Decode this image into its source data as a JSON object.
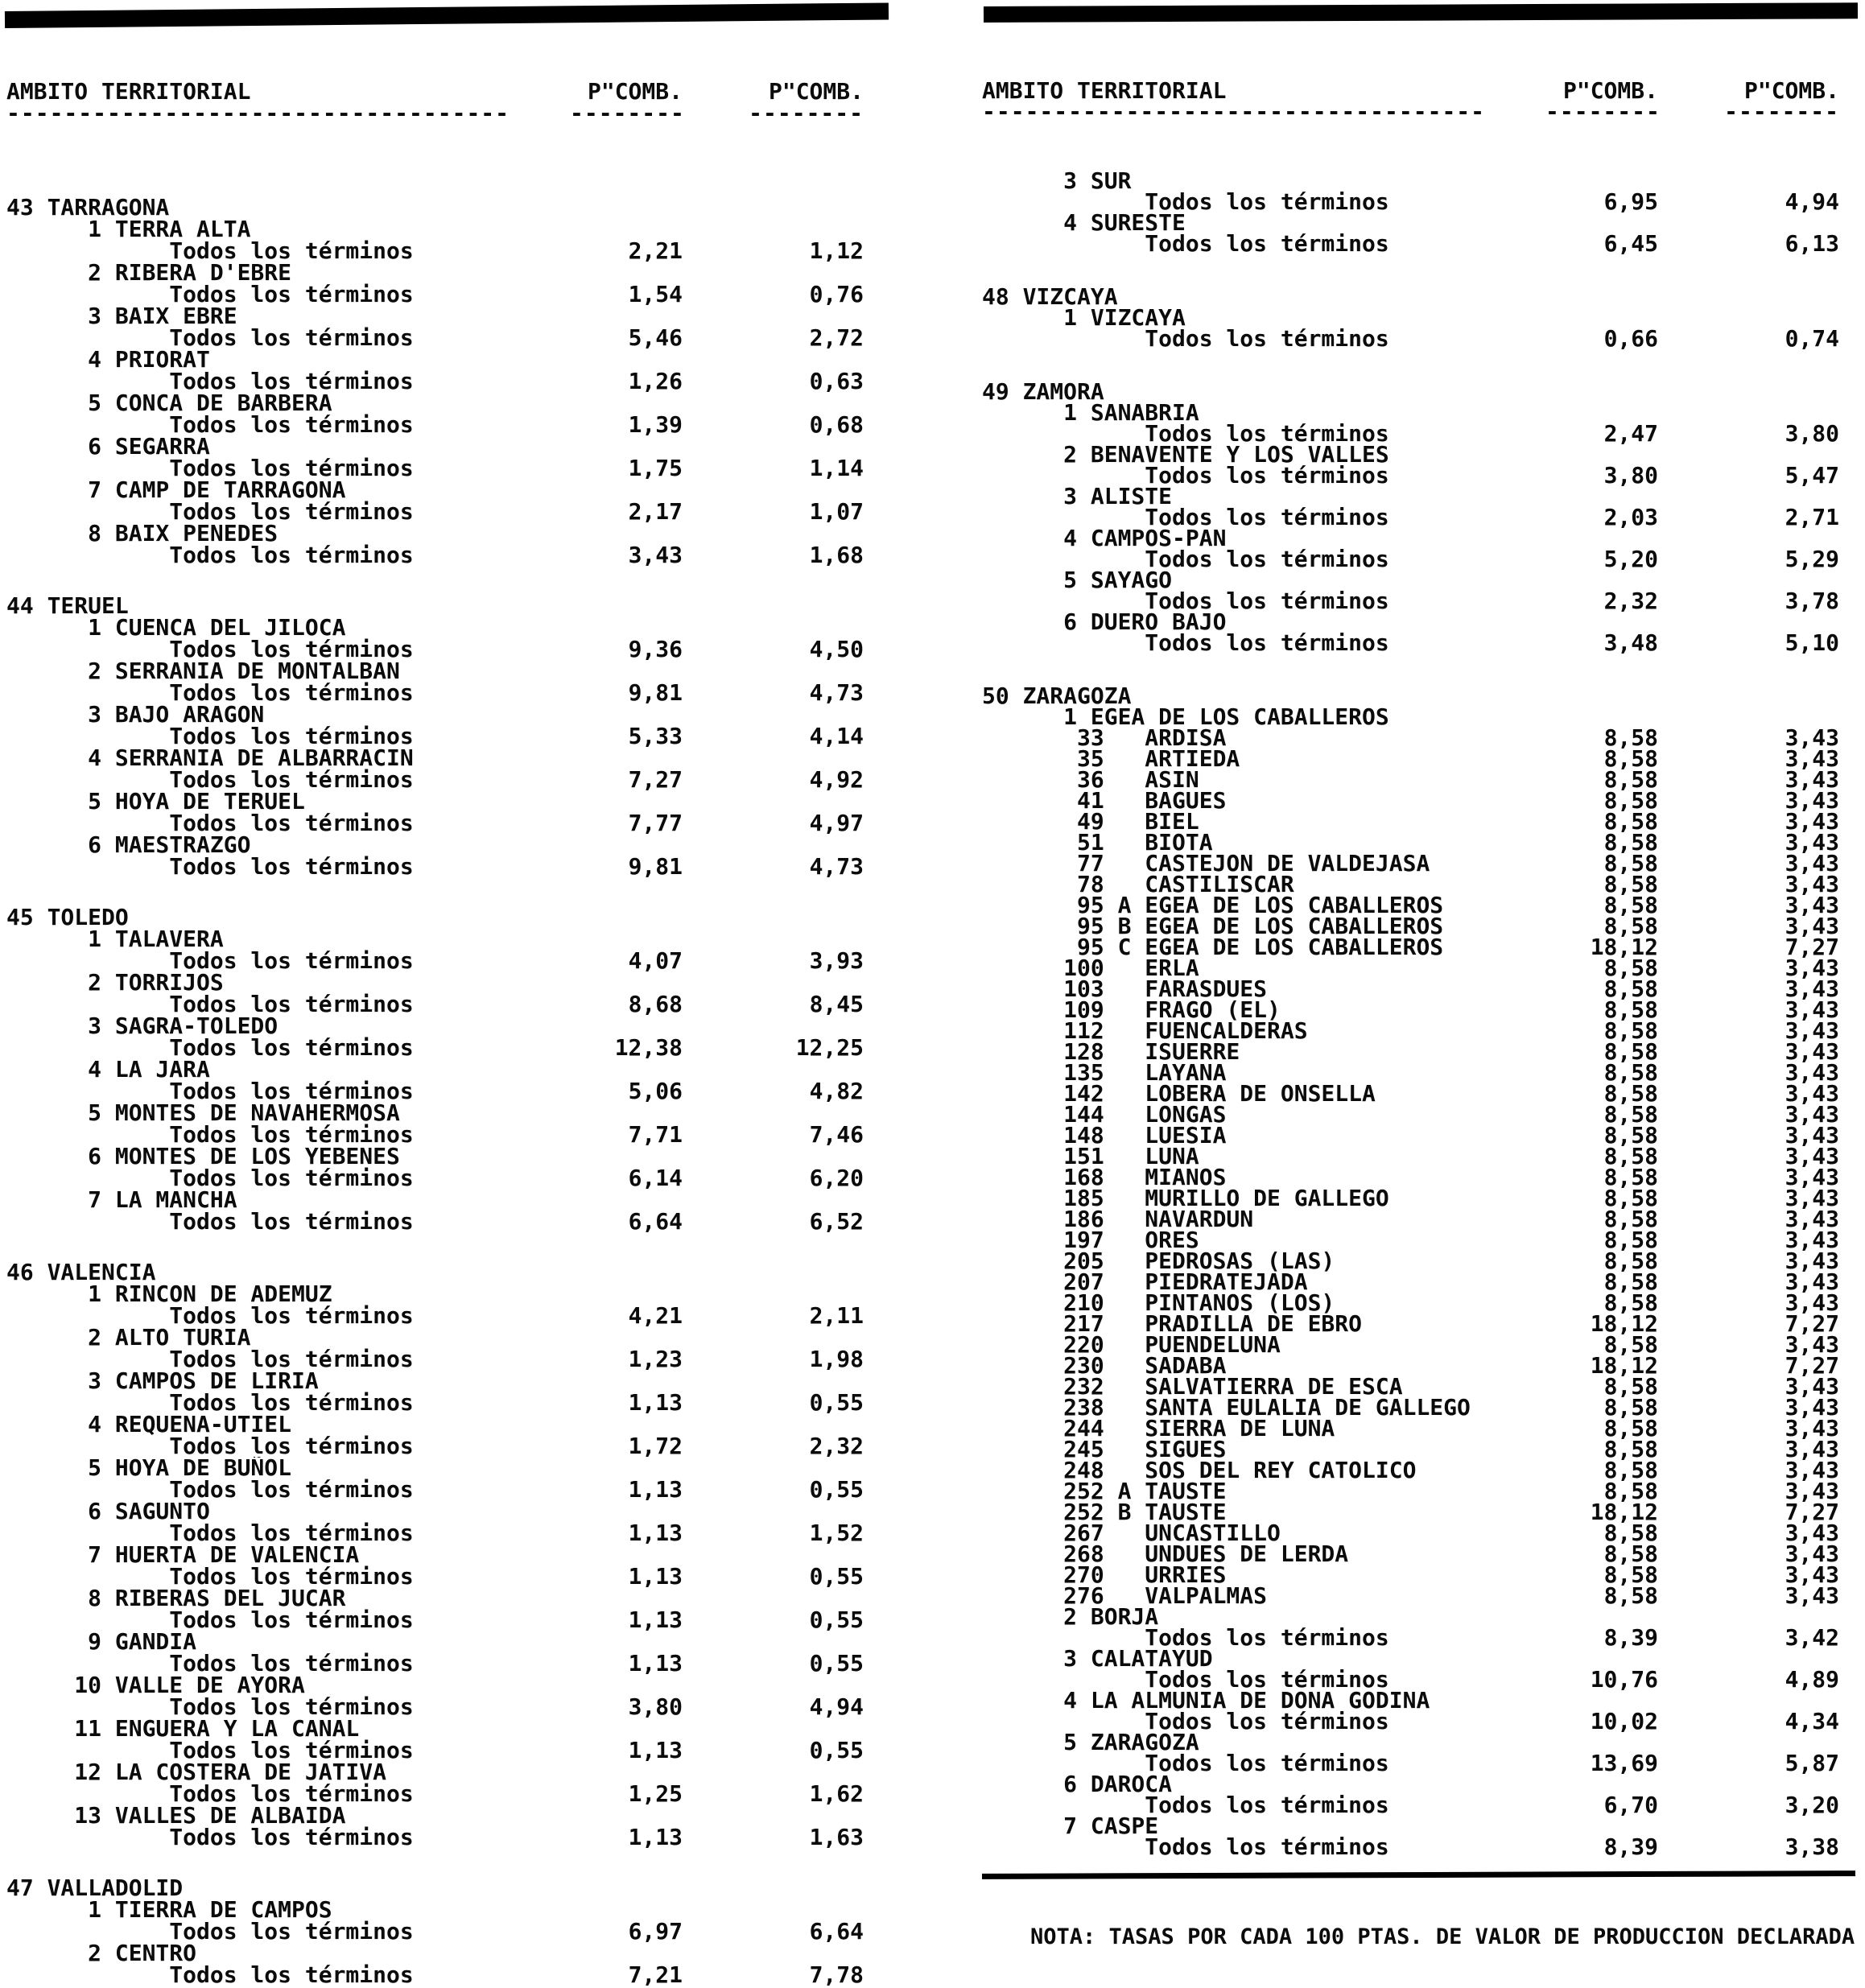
{
  "page": {
    "note": "NOTA: TASAS POR CADA 100 PTAS. DE VALOR DE PRODUCCION DECLARADA"
  },
  "header": {
    "territory_label": "AMBITO TERRITORIAL",
    "col1_label": "P\"COMB.",
    "col2_label": "P\"COMB.",
    "territory_dashes": "-----------------------------------",
    "value_dashes": "--------"
  },
  "todos_label": "Todos los términos",
  "columns": {
    "left": {
      "blocks": [
        {
          "num": "43",
          "name": "TARRAGONA",
          "items": [
            {
              "num": "1",
              "name": "TERRA ALTA",
              "v1": "2,21",
              "v2": "1,12"
            },
            {
              "num": "2",
              "name": "RIBERA D'EBRE",
              "v1": "1,54",
              "v2": "0,76"
            },
            {
              "num": "3",
              "name": "BAIX EBRE",
              "v1": "5,46",
              "v2": "2,72"
            },
            {
              "num": "4",
              "name": "PRIORAT",
              "v1": "1,26",
              "v2": "0,63"
            },
            {
              "num": "5",
              "name": "CONCA DE BARBERA",
              "v1": "1,39",
              "v2": "0,68"
            },
            {
              "num": "6",
              "name": "SEGARRA",
              "v1": "1,75",
              "v2": "1,14"
            },
            {
              "num": "7",
              "name": "CAMP DE TARRAGONA",
              "v1": "2,17",
              "v2": "1,07"
            },
            {
              "num": "8",
              "name": "BAIX PENEDES",
              "v1": "3,43",
              "v2": "1,68"
            }
          ]
        },
        {
          "num": "44",
          "name": "TERUEL",
          "items": [
            {
              "num": "1",
              "name": "CUENCA DEL JILOCA",
              "v1": "9,36",
              "v2": "4,50"
            },
            {
              "num": "2",
              "name": "SERRANIA DE MONTALBAN",
              "v1": "9,81",
              "v2": "4,73"
            },
            {
              "num": "3",
              "name": "BAJO ARAGON",
              "v1": "5,33",
              "v2": "4,14"
            },
            {
              "num": "4",
              "name": "SERRANIA DE ALBARRACIN",
              "v1": "7,27",
              "v2": "4,92"
            },
            {
              "num": "5",
              "name": "HOYA DE TERUEL",
              "v1": "7,77",
              "v2": "4,97"
            },
            {
              "num": "6",
              "name": "MAESTRAZGO",
              "v1": "9,81",
              "v2": "4,73"
            }
          ]
        },
        {
          "num": "45",
          "name": "TOLEDO",
          "items": [
            {
              "num": "1",
              "name": "TALAVERA",
              "v1": "4,07",
              "v2": "3,93"
            },
            {
              "num": "2",
              "name": "TORRIJOS",
              "v1": "8,68",
              "v2": "8,45"
            },
            {
              "num": "3",
              "name": "SAGRA-TOLEDO",
              "v1": "12,38",
              "v2": "12,25"
            },
            {
              "num": "4",
              "name": "LA JARA",
              "v1": "5,06",
              "v2": "4,82"
            },
            {
              "num": "5",
              "name": "MONTES DE NAVAHERMOSA",
              "v1": "7,71",
              "v2": "7,46"
            },
            {
              "num": "6",
              "name": "MONTES DE LOS YEBENES",
              "v1": "6,14",
              "v2": "6,20"
            },
            {
              "num": "7",
              "name": "LA MANCHA",
              "v1": "6,64",
              "v2": "6,52"
            }
          ]
        },
        {
          "num": "46",
          "name": "VALENCIA",
          "items": [
            {
              "num": "1",
              "name": "RINCON DE ADEMUZ",
              "v1": "4,21",
              "v2": "2,11"
            },
            {
              "num": "2",
              "name": "ALTO TURIA",
              "v1": "1,23",
              "v2": "1,98"
            },
            {
              "num": "3",
              "name": "CAMPOS DE LIRIA",
              "v1": "1,13",
              "v2": "0,55"
            },
            {
              "num": "4",
              "name": "REQUENA-UTIEL",
              "v1": "1,72",
              "v2": "2,32"
            },
            {
              "num": "5",
              "name": "HOYA DE BUÑOL",
              "v1": "1,13",
              "v2": "0,55"
            },
            {
              "num": "6",
              "name": "SAGUNTO",
              "v1": "1,13",
              "v2": "1,52"
            },
            {
              "num": "7",
              "name": "HUERTA DE VALENCIA",
              "v1": "1,13",
              "v2": "0,55"
            },
            {
              "num": "8",
              "name": "RIBERAS DEL JUCAR",
              "v1": "1,13",
              "v2": "0,55"
            },
            {
              "num": "9",
              "name": "GANDIA",
              "v1": "1,13",
              "v2": "0,55"
            },
            {
              "num": "10",
              "name": "VALLE DE AYORA",
              "v1": "3,80",
              "v2": "4,94"
            },
            {
              "num": "11",
              "name": "ENGUERA Y LA CANAL",
              "v1": "1,13",
              "v2": "0,55"
            },
            {
              "num": "12",
              "name": "LA COSTERA DE JATIVA",
              "v1": "1,25",
              "v2": "1,62"
            },
            {
              "num": "13",
              "name": "VALLES DE ALBAIDA",
              "v1": "1,13",
              "v2": "1,63"
            }
          ]
        },
        {
          "num": "47",
          "name": "VALLADOLID",
          "items": [
            {
              "num": "1",
              "name": "TIERRA DE CAMPOS",
              "v1": "6,97",
              "v2": "6,64"
            },
            {
              "num": "2",
              "name": "CENTRO",
              "v1": "7,21",
              "v2": "7,78"
            }
          ]
        }
      ]
    },
    "right": {
      "blocks": [
        {
          "num": "",
          "name": "",
          "items": [
            {
              "num": "3",
              "name": "SUR",
              "v1": "6,95",
              "v2": "4,94"
            },
            {
              "num": "4",
              "name": "SURESTE",
              "v1": "6,45",
              "v2": "6,13"
            }
          ]
        },
        {
          "num": "48",
          "name": "VIZCAYA",
          "items": [
            {
              "num": "1",
              "name": "VIZCAYA",
              "v1": "0,66",
              "v2": "0,74"
            }
          ]
        },
        {
          "num": "49",
          "name": "ZAMORA",
          "items": [
            {
              "num": "1",
              "name": "SANABRIA",
              "v1": "2,47",
              "v2": "3,80"
            },
            {
              "num": "2",
              "name": "BENAVENTE Y LOS VALLES",
              "v1": "3,80",
              "v2": "5,47"
            },
            {
              "num": "3",
              "name": "ALISTE",
              "v1": "2,03",
              "v2": "2,71"
            },
            {
              "num": "4",
              "name": "CAMPOS-PAN",
              "v1": "5,20",
              "v2": "5,29"
            },
            {
              "num": "5",
              "name": "SAYAGO",
              "v1": "2,32",
              "v2": "3,78"
            },
            {
              "num": "6",
              "name": "DUERO BAJO",
              "v1": "3,48",
              "v2": "5,10"
            }
          ]
        },
        {
          "num": "50",
          "name": "ZARAGOZA",
          "items": [
            {
              "num": "1",
              "name": "EGEA DE LOS CABALLEROS",
              "munis": [
                {
                  "num": "33",
                  "suf": "",
                  "name": "ARDISA",
                  "v1": "8,58",
                  "v2": "3,43"
                },
                {
                  "num": "35",
                  "suf": "",
                  "name": "ARTIEDA",
                  "v1": "8,58",
                  "v2": "3,43"
                },
                {
                  "num": "36",
                  "suf": "",
                  "name": "ASIN",
                  "v1": "8,58",
                  "v2": "3,43"
                },
                {
                  "num": "41",
                  "suf": "",
                  "name": "BAGUES",
                  "v1": "8,58",
                  "v2": "3,43"
                },
                {
                  "num": "49",
                  "suf": "",
                  "name": "BIEL",
                  "v1": "8,58",
                  "v2": "3,43"
                },
                {
                  "num": "51",
                  "suf": "",
                  "name": "BIOTA",
                  "v1": "8,58",
                  "v2": "3,43"
                },
                {
                  "num": "77",
                  "suf": "",
                  "name": "CASTEJON DE VALDEJASA",
                  "v1": "8,58",
                  "v2": "3,43"
                },
                {
                  "num": "78",
                  "suf": "",
                  "name": "CASTILISCAR",
                  "v1": "8,58",
                  "v2": "3,43"
                },
                {
                  "num": "95",
                  "suf": "A",
                  "name": "EGEA DE LOS CABALLEROS",
                  "v1": "8,58",
                  "v2": "3,43"
                },
                {
                  "num": "95",
                  "suf": "B",
                  "name": "EGEA DE LOS CABALLEROS",
                  "v1": "8,58",
                  "v2": "3,43"
                },
                {
                  "num": "95",
                  "suf": "C",
                  "name": "EGEA DE LOS CABALLEROS",
                  "v1": "18,12",
                  "v2": "7,27"
                },
                {
                  "num": "100",
                  "suf": "",
                  "name": "ERLA",
                  "v1": "8,58",
                  "v2": "3,43"
                },
                {
                  "num": "103",
                  "suf": "",
                  "name": "FARASDUES",
                  "v1": "8,58",
                  "v2": "3,43"
                },
                {
                  "num": "109",
                  "suf": "",
                  "name": "FRAGO (EL)",
                  "v1": "8,58",
                  "v2": "3,43"
                },
                {
                  "num": "112",
                  "suf": "",
                  "name": "FUENCALDERAS",
                  "v1": "8,58",
                  "v2": "3,43"
                },
                {
                  "num": "128",
                  "suf": "",
                  "name": "ISUERRE",
                  "v1": "8,58",
                  "v2": "3,43"
                },
                {
                  "num": "135",
                  "suf": "",
                  "name": "LAYANA",
                  "v1": "8,58",
                  "v2": "3,43"
                },
                {
                  "num": "142",
                  "suf": "",
                  "name": "LOBERA DE ONSELLA",
                  "v1": "8,58",
                  "v2": "3,43"
                },
                {
                  "num": "144",
                  "suf": "",
                  "name": "LONGAS",
                  "v1": "8,58",
                  "v2": "3,43"
                },
                {
                  "num": "148",
                  "suf": "",
                  "name": "LUESIA",
                  "v1": "8,58",
                  "v2": "3,43"
                },
                {
                  "num": "151",
                  "suf": "",
                  "name": "LUNA",
                  "v1": "8,58",
                  "v2": "3,43"
                },
                {
                  "num": "168",
                  "suf": "",
                  "name": "MIANOS",
                  "v1": "8,58",
                  "v2": "3,43"
                },
                {
                  "num": "185",
                  "suf": "",
                  "name": "MURILLO DE GALLEGO",
                  "v1": "8,58",
                  "v2": "3,43"
                },
                {
                  "num": "186",
                  "suf": "",
                  "name": "NAVARDUN",
                  "v1": "8,58",
                  "v2": "3,43"
                },
                {
                  "num": "197",
                  "suf": "",
                  "name": "ORES",
                  "v1": "8,58",
                  "v2": "3,43"
                },
                {
                  "num": "205",
                  "suf": "",
                  "name": "PEDROSAS (LAS)",
                  "v1": "8,58",
                  "v2": "3,43"
                },
                {
                  "num": "207",
                  "suf": "",
                  "name": "PIEDRATEJADA",
                  "v1": "8,58",
                  "v2": "3,43"
                },
                {
                  "num": "210",
                  "suf": "",
                  "name": "PINTANOS (LOS)",
                  "v1": "8,58",
                  "v2": "3,43"
                },
                {
                  "num": "217",
                  "suf": "",
                  "name": "PRADILLA DE EBRO",
                  "v1": "18,12",
                  "v2": "7,27"
                },
                {
                  "num": "220",
                  "suf": "",
                  "name": "PUENDELUNA",
                  "v1": "8,58",
                  "v2": "3,43"
                },
                {
                  "num": "230",
                  "suf": "",
                  "name": "SADABA",
                  "v1": "18,12",
                  "v2": "7,27"
                },
                {
                  "num": "232",
                  "suf": "",
                  "name": "SALVATIERRA DE ESCA",
                  "v1": "8,58",
                  "v2": "3,43"
                },
                {
                  "num": "238",
                  "suf": "",
                  "name": "SANTA EULALIA DE GALLEGO",
                  "v1": "8,58",
                  "v2": "3,43"
                },
                {
                  "num": "244",
                  "suf": "",
                  "name": "SIERRA DE LUNA",
                  "v1": "8,58",
                  "v2": "3,43"
                },
                {
                  "num": "245",
                  "suf": "",
                  "name": "SIGUES",
                  "v1": "8,58",
                  "v2": "3,43"
                },
                {
                  "num": "248",
                  "suf": "",
                  "name": "SOS DEL REY CATOLICO",
                  "v1": "8,58",
                  "v2": "3,43"
                },
                {
                  "num": "252",
                  "suf": "A",
                  "name": "TAUSTE",
                  "v1": "8,58",
                  "v2": "3,43"
                },
                {
                  "num": "252",
                  "suf": "B",
                  "name": "TAUSTE",
                  "v1": "18,12",
                  "v2": "7,27"
                },
                {
                  "num": "267",
                  "suf": "",
                  "name": "UNCASTILLO",
                  "v1": "8,58",
                  "v2": "3,43"
                },
                {
                  "num": "268",
                  "suf": "",
                  "name": "UNDUES DE LERDA",
                  "v1": "8,58",
                  "v2": "3,43"
                },
                {
                  "num": "270",
                  "suf": "",
                  "name": "URRIES",
                  "v1": "8,58",
                  "v2": "3,43"
                },
                {
                  "num": "276",
                  "suf": "",
                  "name": "VALPALMAS",
                  "v1": "8,58",
                  "v2": "3,43"
                }
              ]
            },
            {
              "num": "2",
              "name": "BORJA",
              "v1": "8,39",
              "v2": "3,42"
            },
            {
              "num": "3",
              "name": "CALATAYUD",
              "v1": "10,76",
              "v2": "4,89"
            },
            {
              "num": "4",
              "name": "LA ALMUNIA DE DOÑA GODINA",
              "v1": "10,02",
              "v2": "4,34"
            },
            {
              "num": "5",
              "name": "ZARAGOZA",
              "v1": "13,69",
              "v2": "5,87"
            },
            {
              "num": "6",
              "name": "DAROCA",
              "v1": "6,70",
              "v2": "3,20"
            },
            {
              "num": "7",
              "name": "CASPE",
              "v1": "8,39",
              "v2": "3,38"
            }
          ]
        }
      ]
    }
  }
}
